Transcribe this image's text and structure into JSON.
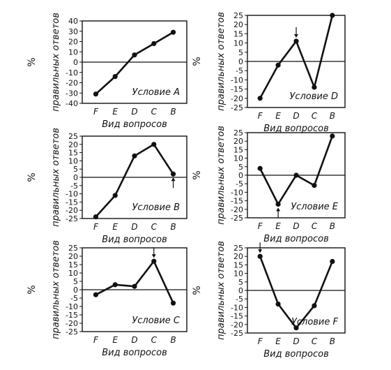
{
  "chart_data": [
    {
      "type": "line",
      "title": "",
      "condition": "Условие A",
      "xlabel": "Вид вопросов",
      "ylabel": "правильных ответов",
      "yunit": "%",
      "categories": [
        "F",
        "E",
        "D",
        "C",
        "B"
      ],
      "values": [
        -31,
        -14,
        7,
        18,
        29
      ],
      "yticks": [
        40,
        30,
        20,
        10,
        0,
        -10,
        -20,
        -30,
        -40
      ],
      "ylim": [
        -40,
        40
      ],
      "arrow": null
    },
    {
      "type": "line",
      "title": "",
      "condition": "Условие D",
      "xlabel": "Вид вопросов",
      "ylabel": "правильных ответов",
      "yunit": "%",
      "categories": [
        "F",
        "E",
        "D",
        "C",
        "B"
      ],
      "values": [
        -20,
        -2,
        11,
        -14,
        25
      ],
      "yticks": [
        25,
        20,
        15,
        10,
        5,
        0,
        -5,
        -10,
        -15,
        -20,
        -25
      ],
      "ylim": [
        -25,
        25
      ],
      "arrow": {
        "category": "D",
        "direction": "down"
      }
    },
    {
      "type": "line",
      "title": "",
      "condition": "Условие B",
      "xlabel": "Вид вопросов",
      "ylabel": "правильных ответов",
      "yunit": "%",
      "categories": [
        "F",
        "E",
        "D",
        "C",
        "B"
      ],
      "values": [
        -24,
        -11,
        13,
        20,
        2
      ],
      "yticks": [
        25,
        20,
        15,
        10,
        5,
        0,
        -5,
        -10,
        -15,
        -20,
        -25
      ],
      "ylim": [
        -25,
        25
      ],
      "arrow": {
        "category": "B",
        "direction": "up"
      }
    },
    {
      "type": "line",
      "title": "",
      "condition": "Условие E",
      "xlabel": "Вид вопросов",
      "ylabel": "правильных ответов",
      "yunit": "%",
      "categories": [
        "F",
        "E",
        "D",
        "C",
        "B"
      ],
      "values": [
        4,
        -17,
        0,
        -6,
        23
      ],
      "yticks": [
        25,
        20,
        15,
        10,
        5,
        0,
        -5,
        -10,
        -15,
        -20,
        -25
      ],
      "ylim": [
        -25,
        25
      ],
      "arrow": {
        "category": "E",
        "direction": "up"
      }
    },
    {
      "type": "line",
      "title": "",
      "condition": "Условие C",
      "xlabel": "Вид вопросов",
      "ylabel": "правильных ответов",
      "yunit": "%",
      "categories": [
        "F",
        "E",
        "D",
        "C",
        "B"
      ],
      "values": [
        -3,
        3,
        2,
        17,
        -8
      ],
      "yticks": [
        25,
        20,
        15,
        10,
        5,
        0,
        -5,
        -10,
        -15,
        -20,
        -25
      ],
      "ylim": [
        -25,
        25
      ],
      "arrow": {
        "category": "C",
        "direction": "down"
      }
    },
    {
      "type": "line",
      "title": "",
      "condition": "Условие F",
      "xlabel": "Вид вопросов",
      "ylabel": "правильных ответов",
      "yunit": "%",
      "categories": [
        "F",
        "E",
        "D",
        "C",
        "B"
      ],
      "values": [
        20,
        -8,
        -22,
        -9,
        17
      ],
      "yticks": [
        25,
        20,
        15,
        10,
        5,
        0,
        -5,
        -10,
        -15,
        -20,
        -25
      ],
      "ylim": [
        -25,
        25
      ],
      "arrow": {
        "category": "F",
        "direction": "down"
      }
    }
  ]
}
